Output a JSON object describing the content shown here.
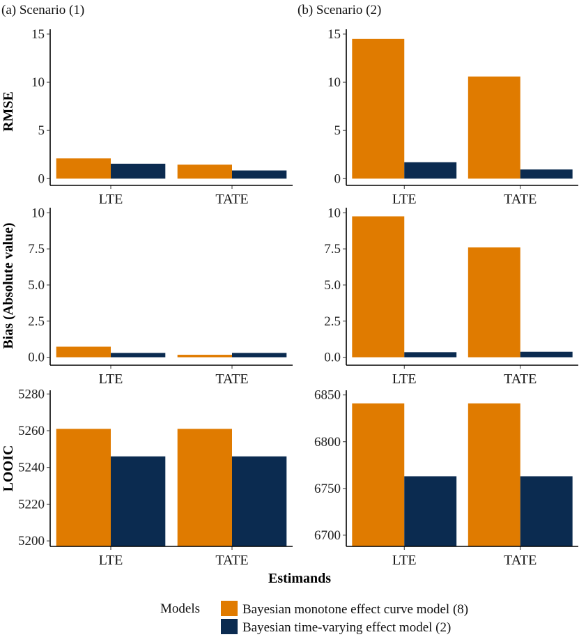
{
  "colors": {
    "model_8": "#E07B00",
    "model_2": "#0B2B50"
  },
  "panel_titles": {
    "left": "(a) Scenario (1)",
    "right": "(b) Scenario (2)"
  },
  "y_labels": {
    "rmse": "RMSE",
    "bias": "Bias (Absolute value)",
    "looic": "LOOIC"
  },
  "x_label": "Estimands",
  "legend": {
    "title": "Models",
    "items": [
      "Bayesian monotone effect curve model (8)",
      "Bayesian time-varying effect model (2)"
    ]
  },
  "chart_data": [
    {
      "type": "bar",
      "metric": "RMSE",
      "scenario": "(a) Scenario (1)",
      "categories": [
        "LTE",
        "TATE"
      ],
      "series": [
        {
          "name": "Bayesian monotone effect curve model (8)",
          "values": [
            2.1,
            1.45
          ]
        },
        {
          "name": "Bayesian time-varying effect model (2)",
          "values": [
            1.55,
            0.85
          ]
        }
      ],
      "ylim": [
        -0.7,
        15.5
      ],
      "yticks": [
        0,
        5,
        10,
        15
      ],
      "ytick_labels": [
        "0",
        "5",
        "10",
        "15"
      ]
    },
    {
      "type": "bar",
      "metric": "RMSE",
      "scenario": "(b) Scenario (2)",
      "categories": [
        "LTE",
        "TATE"
      ],
      "series": [
        {
          "name": "Bayesian monotone effect curve model (8)",
          "values": [
            14.5,
            10.6
          ]
        },
        {
          "name": "Bayesian time-varying effect model (2)",
          "values": [
            1.7,
            0.95
          ]
        }
      ],
      "ylim": [
        -0.7,
        15.5
      ],
      "yticks": [
        0,
        5,
        10,
        15
      ],
      "ytick_labels": [
        "0",
        "5",
        "10",
        "15"
      ]
    },
    {
      "type": "bar",
      "metric": "Bias (Absolute value)",
      "scenario": "(a) Scenario (1)",
      "categories": [
        "LTE",
        "TATE"
      ],
      "series": [
        {
          "name": "Bayesian monotone effect curve model (8)",
          "values": [
            0.73,
            0.17
          ]
        },
        {
          "name": "Bayesian time-varying effect model (2)",
          "values": [
            0.3,
            0.3
          ]
        }
      ],
      "ylim": [
        -0.55,
        10.35
      ],
      "yticks": [
        0,
        2.5,
        5,
        7.5,
        10
      ],
      "ytick_labels": [
        "0.0",
        "2.5",
        "5.0",
        "7.5",
        "10"
      ]
    },
    {
      "type": "bar",
      "metric": "Bias (Absolute value)",
      "scenario": "(b) Scenario (2)",
      "categories": [
        "LTE",
        "TATE"
      ],
      "series": [
        {
          "name": "Bayesian monotone effect curve model (8)",
          "values": [
            9.75,
            7.6
          ]
        },
        {
          "name": "Bayesian time-varying effect model (2)",
          "values": [
            0.35,
            0.38
          ]
        }
      ],
      "ylim": [
        -0.55,
        10.35
      ],
      "yticks": [
        0,
        2.5,
        5,
        7.5,
        10
      ],
      "ytick_labels": [
        "0.0",
        "2.5",
        "5.0",
        "7.5",
        "10"
      ]
    },
    {
      "type": "bar",
      "metric": "LOOIC",
      "scenario": "(a) Scenario (1)",
      "categories": [
        "LTE",
        "TATE"
      ],
      "series": [
        {
          "name": "Bayesian monotone effect curve model (8)",
          "values": [
            5261,
            5261
          ]
        },
        {
          "name": "Bayesian time-varying effect model (2)",
          "values": [
            5246,
            5246
          ]
        }
      ],
      "ylim": [
        5197,
        5282
      ],
      "yticks": [
        5200,
        5220,
        5240,
        5260,
        5280
      ],
      "ytick_labels": [
        "5200",
        "5220",
        "5240",
        "5260",
        "5280"
      ]
    },
    {
      "type": "bar",
      "metric": "LOOIC",
      "scenario": "(b) Scenario (2)",
      "categories": [
        "LTE",
        "TATE"
      ],
      "series": [
        {
          "name": "Bayesian monotone effect curve model (8)",
          "values": [
            6841,
            6841
          ]
        },
        {
          "name": "Bayesian time-varying effect model (2)",
          "values": [
            6763,
            6763
          ]
        }
      ],
      "ylim": [
        6688,
        6855
      ],
      "yticks": [
        6700,
        6750,
        6800,
        6850
      ],
      "ytick_labels": [
        "6700",
        "6750",
        "6800",
        "6850"
      ]
    }
  ]
}
